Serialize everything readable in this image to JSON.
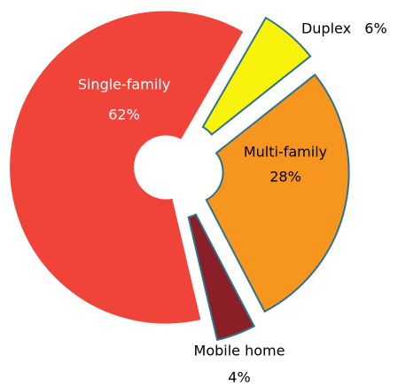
{
  "chart_data": {
    "type": "donut",
    "categories": [
      "Duplex",
      "Multi-family",
      "Mobile home",
      "Single-family"
    ],
    "values": [
      6,
      28,
      4,
      62
    ],
    "value_labels": [
      "6%",
      "28%",
      "4%",
      "62%"
    ],
    "colors": [
      "#f8f20c",
      "#f7961f",
      "#8a1f28",
      "#f0443a"
    ]
  }
}
